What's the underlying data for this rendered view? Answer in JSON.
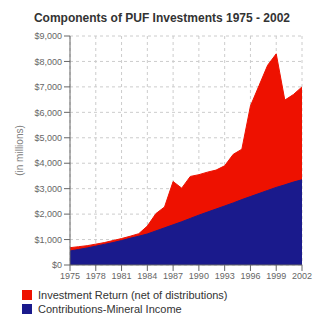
{
  "chart_data": {
    "type": "area",
    "title": "Components of PUF Investments 1975 - 2002",
    "y_label": "(in millions)",
    "x": [
      1975,
      1976,
      1977,
      1978,
      1979,
      1980,
      1981,
      1982,
      1983,
      1984,
      1985,
      1986,
      1987,
      1988,
      1989,
      1990,
      1991,
      1992,
      1993,
      1994,
      1995,
      1996,
      1997,
      1998,
      1999,
      2000,
      2001,
      2002
    ],
    "series": [
      {
        "name": "Investment Return (net of distributions)",
        "color": "#ee1100",
        "values": [
          680,
          720,
          760,
          820,
          880,
          960,
          1040,
          1130,
          1230,
          1530,
          2020,
          2280,
          3280,
          3020,
          3480,
          3550,
          3650,
          3730,
          3900,
          4350,
          4550,
          6250,
          7050,
          7850,
          8300,
          6480,
          6700,
          7000
        ]
      },
      {
        "name": "Contributions-Mineral Income",
        "color": "#1a1a8c",
        "values": [
          550,
          610,
          670,
          740,
          810,
          880,
          960,
          1050,
          1130,
          1220,
          1340,
          1460,
          1580,
          1700,
          1830,
          1960,
          2080,
          2200,
          2320,
          2440,
          2570,
          2690,
          2810,
          2930,
          3050,
          3150,
          3260,
          3350
        ]
      }
    ],
    "xlim": [
      1975,
      2002
    ],
    "xticks": [
      1975,
      1978,
      1981,
      1984,
      1987,
      1990,
      1993,
      1996,
      1999,
      2002
    ],
    "ylim": [
      0,
      9000
    ],
    "yticks": [
      {
        "value": 0,
        "label": "$0"
      },
      {
        "value": 1000,
        "label": "$1,000"
      },
      {
        "value": 2000,
        "label": "$2,000"
      },
      {
        "value": 3000,
        "label": "$3,000"
      },
      {
        "value": 4000,
        "label": "$4,000"
      },
      {
        "value": 5000,
        "label": "$5,000"
      },
      {
        "value": 6000,
        "label": "$6,000"
      },
      {
        "value": 7000,
        "label": "$7,000"
      },
      {
        "value": 8000,
        "label": "$8,000"
      },
      {
        "value": 9000,
        "label": "$9,000"
      }
    ],
    "grid": true,
    "legend": "bottom",
    "stacked": false
  }
}
